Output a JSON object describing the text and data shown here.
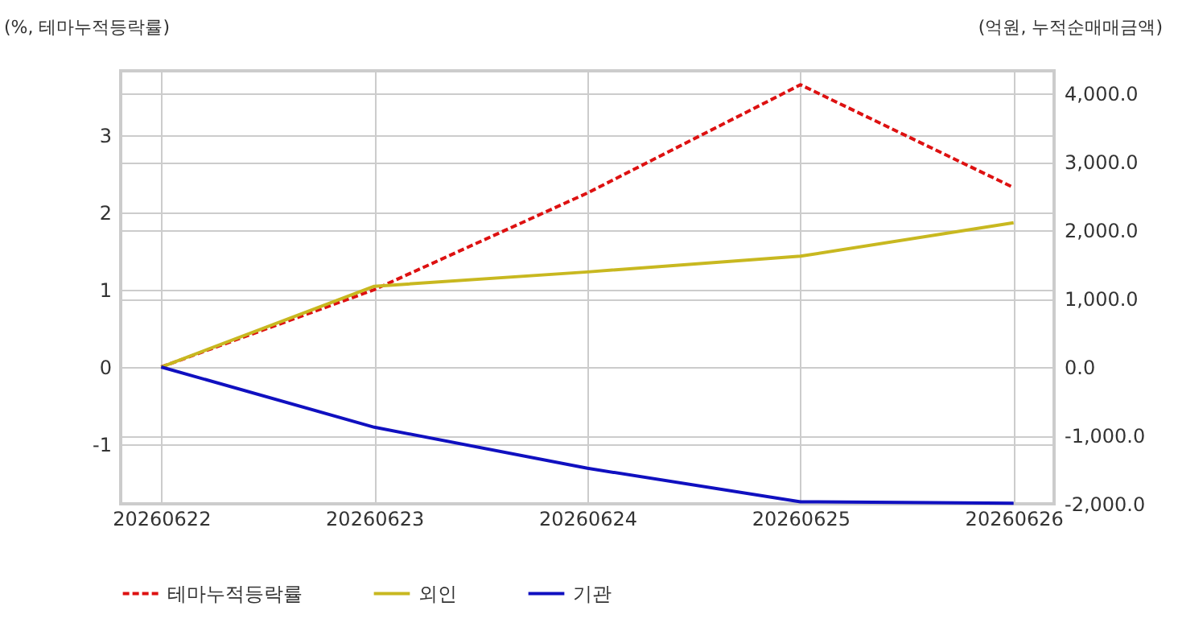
{
  "chart_data": {
    "type": "line",
    "ylabel": "(%, 테마누적등락률)",
    "y2label": "(억원, 누적순매매금액)",
    "categories": [
      "20260622",
      "20260623",
      "20260624",
      "20260625",
      "20260626"
    ],
    "series": [
      {
        "name": "테마누적등락률",
        "color": "#dd1111",
        "line_style": "dashed",
        "values": [
          0,
          1.0,
          2.25,
          3.65,
          2.32
        ]
      },
      {
        "name": "외인",
        "color": "#c8b820",
        "axis": "y2",
        "values": [
          0,
          1180,
          1390,
          1620,
          2110
        ]
      },
      {
        "name": "기관",
        "color": "#1010c0",
        "axis": "y2",
        "values": [
          0,
          -880,
          -1480,
          -1970,
          -1990
        ]
      }
    ],
    "ylim": [
      -1.77,
      3.83
    ],
    "yticks": [
      -1,
      0,
      1,
      2,
      3
    ],
    "y2lim": [
      -2000,
      4330
    ],
    "y2ticks": [
      {
        "value": -2000,
        "label": "-2,000.0"
      },
      {
        "value": -1000,
        "label": "-1,000.0"
      },
      {
        "value": 0,
        "label": "0.0"
      },
      {
        "value": 1000,
        "label": "1,000.0"
      },
      {
        "value": 2000,
        "label": "2,000.0"
      },
      {
        "value": 3000,
        "label": "3,000.0"
      },
      {
        "value": 4000,
        "label": "4,000.0"
      }
    ],
    "grid": true,
    "legend": "bottom",
    "line_style": "solid",
    "marker": "none"
  }
}
